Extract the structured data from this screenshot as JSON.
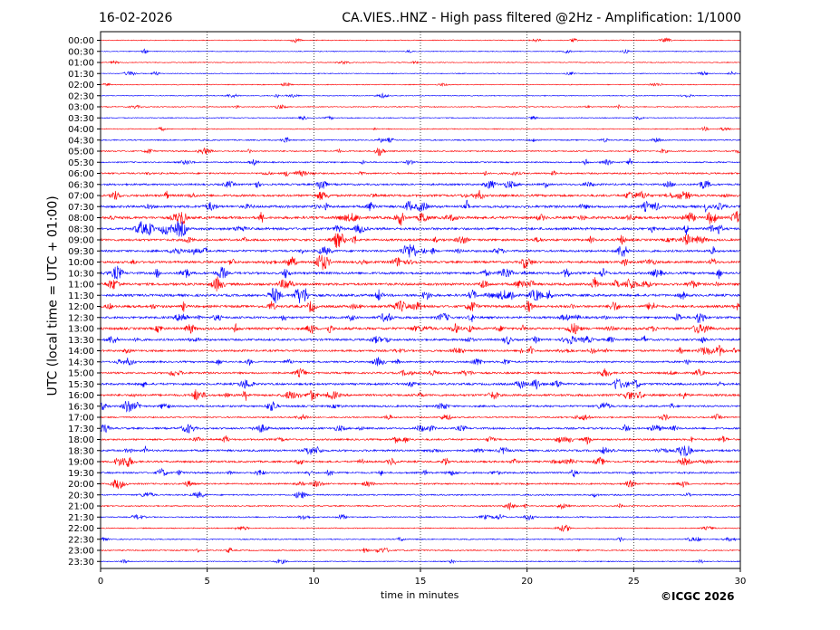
{
  "header": {
    "date": "16-02-2026",
    "title": "CA.VIES..HNZ - High pass filtered @2Hz - Amplification: 1/1000"
  },
  "copyright": "©ICGC 2026",
  "colors": {
    "red_trace": "#ff0000",
    "blue_trace": "#0000ff",
    "grid": "#000000"
  },
  "chart_data": {
    "type": "line",
    "title": "CA.VIES..HNZ - High pass filtered @2Hz - Amplification: 1/1000",
    "xlabel": "time in minutes",
    "ylabel": "UTC (local time = UTC + 01:00)",
    "xlim": [
      0,
      30
    ],
    "x_ticks": [
      "0",
      "5",
      "10",
      "15",
      "20",
      "25",
      "30"
    ],
    "grid": "vertical dotted lines at 5-minute intervals",
    "trace_color_order": [
      "red",
      "blue"
    ],
    "rows": [
      "00:00",
      "00:30",
      "01:00",
      "01:30",
      "02:00",
      "02:30",
      "03:00",
      "03:30",
      "04:00",
      "04:30",
      "05:00",
      "05:30",
      "06:00",
      "06:30",
      "07:00",
      "07:30",
      "08:00",
      "08:30",
      "09:00",
      "09:30",
      "10:00",
      "10:30",
      "11:00",
      "11:30",
      "12:00",
      "12:30",
      "13:00",
      "13:30",
      "14:00",
      "14:30",
      "15:00",
      "15:30",
      "16:00",
      "16:30",
      "17:00",
      "17:30",
      "18:00",
      "18:30",
      "19:00",
      "19:30",
      "20:00",
      "20:30",
      "21:00",
      "21:30",
      "22:00",
      "22:30",
      "23:00",
      "23:30"
    ],
    "activity_level": [
      0.15,
      0.15,
      0.15,
      0.15,
      0.15,
      0.15,
      0.2,
      0.2,
      0.2,
      0.3,
      0.35,
      0.35,
      0.5,
      0.6,
      0.75,
      0.85,
      0.9,
      0.85,
      0.75,
      0.7,
      0.75,
      0.8,
      0.85,
      0.85,
      0.85,
      0.75,
      0.85,
      0.7,
      0.65,
      0.55,
      0.6,
      0.7,
      0.75,
      0.6,
      0.4,
      0.6,
      0.55,
      0.65,
      0.6,
      0.55,
      0.45,
      0.4,
      0.3,
      0.3,
      0.25,
      0.25,
      0.3,
      0.2
    ]
  }
}
